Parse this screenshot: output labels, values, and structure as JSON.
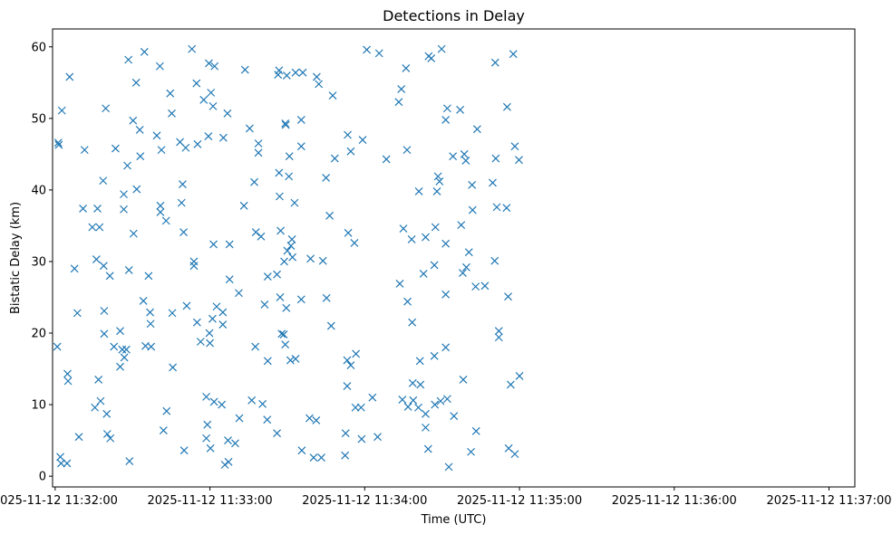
{
  "chart_data": {
    "type": "scatter",
    "title": "Detections in Delay",
    "xlabel": "Time (UTC)",
    "ylabel": "Bistatic Delay (km)",
    "x_is_time": true,
    "xlim": [
      "2025-11-12 11:31:59",
      "2025-11-12 11:37:10"
    ],
    "ylim": [
      -1.5,
      62.5
    ],
    "x_ticks": [
      {
        "label": "2025-11-12 11:32:00",
        "value": "2025-11-12 11:32:00"
      },
      {
        "label": "2025-11-12 11:33:00",
        "value": "2025-11-12 11:33:00"
      },
      {
        "label": "2025-11-12 11:34:00",
        "value": "2025-11-12 11:34:00"
      },
      {
        "label": "2025-11-12 11:35:00",
        "value": "2025-11-12 11:35:00"
      },
      {
        "label": "2025-11-12 11:36:00",
        "value": "2025-11-12 11:36:00"
      },
      {
        "label": "2025-11-12 11:37:00",
        "value": "2025-11-12 11:37:00"
      }
    ],
    "y_ticks": [
      {
        "label": "0",
        "value": 0
      },
      {
        "label": "10",
        "value": 10
      },
      {
        "label": "20",
        "value": 20
      },
      {
        "label": "30",
        "value": 30
      },
      {
        "label": "40",
        "value": 40
      },
      {
        "label": "50",
        "value": 50
      },
      {
        "label": "60",
        "value": 60
      }
    ],
    "grid": false,
    "marker": "x",
    "color": "#1f77b4",
    "points": [
      [
        "2025-11-12 11:32:00.8",
        18.1
      ],
      [
        "2025-11-12 11:32:01.2",
        46.6
      ],
      [
        "2025-11-12 11:32:01.4",
        46.3
      ],
      [
        "2025-11-12 11:32:02.0",
        2.7
      ],
      [
        "2025-11-12 11:32:02.3",
        1.8
      ],
      [
        "2025-11-12 11:32:02.6",
        51.1
      ],
      [
        "2025-11-12 11:32:04.6",
        1.8
      ],
      [
        "2025-11-12 11:32:04.8",
        14.3
      ],
      [
        "2025-11-12 11:32:05.0",
        13.3
      ],
      [
        "2025-11-12 11:32:05.6",
        55.8
      ],
      [
        "2025-11-12 11:32:07.5",
        29.0
      ],
      [
        "2025-11-12 11:32:08.6",
        22.8
      ],
      [
        "2025-11-12 11:32:09.2",
        5.5
      ],
      [
        "2025-11-12 11:32:10.8",
        37.4
      ],
      [
        "2025-11-12 11:32:11.4",
        45.6
      ],
      [
        "2025-11-12 11:32:14.4",
        34.8
      ],
      [
        "2025-11-12 11:32:15.4",
        9.6
      ],
      [
        "2025-11-12 11:32:16.0",
        30.3
      ],
      [
        "2025-11-12 11:32:16.4",
        37.4
      ],
      [
        "2025-11-12 11:32:16.8",
        13.5
      ],
      [
        "2025-11-12 11:32:17.2",
        34.8
      ],
      [
        "2025-11-12 11:32:17.6",
        10.5
      ],
      [
        "2025-11-12 11:32:18.6",
        41.3
      ],
      [
        "2025-11-12 11:32:18.8",
        29.4
      ],
      [
        "2025-11-12 11:32:19.0",
        23.1
      ],
      [
        "2025-11-12 11:32:19.0",
        19.9
      ],
      [
        "2025-11-12 11:32:19.6",
        51.4
      ],
      [
        "2025-11-12 11:32:20.0",
        8.7
      ],
      [
        "2025-11-12 11:32:20.2",
        5.9
      ],
      [
        "2025-11-12 11:32:21.2",
        28.0
      ],
      [
        "2025-11-12 11:32:21.4",
        5.3
      ],
      [
        "2025-11-12 11:32:22.8",
        18.1
      ],
      [
        "2025-11-12 11:32:23.4",
        45.8
      ],
      [
        "2025-11-12 11:32:25.2",
        20.3
      ],
      [
        "2025-11-12 11:32:25.2",
        15.3
      ],
      [
        "2025-11-12 11:32:26.0",
        17.7
      ],
      [
        "2025-11-12 11:32:26.6",
        39.4
      ],
      [
        "2025-11-12 11:32:26.6",
        37.3
      ],
      [
        "2025-11-12 11:32:26.8",
        16.6
      ],
      [
        "2025-11-12 11:32:27.6",
        17.7
      ],
      [
        "2025-11-12 11:32:28.0",
        43.4
      ],
      [
        "2025-11-12 11:32:28.4",
        58.2
      ],
      [
        "2025-11-12 11:32:28.6",
        28.8
      ],
      [
        "2025-11-12 11:32:28.8",
        2.1
      ],
      [
        "2025-11-12 11:32:30.2",
        49.7
      ],
      [
        "2025-11-12 11:32:30.4",
        33.9
      ],
      [
        "2025-11-12 11:32:31.4",
        55.0
      ],
      [
        "2025-11-12 11:32:31.6",
        40.1
      ],
      [
        "2025-11-12 11:32:32.8",
        48.4
      ],
      [
        "2025-11-12 11:32:33.0",
        44.7
      ],
      [
        "2025-11-12 11:32:34.2",
        24.5
      ],
      [
        "2025-11-12 11:32:34.6",
        59.3
      ],
      [
        "2025-11-12 11:32:35.0",
        18.2
      ],
      [
        "2025-11-12 11:32:36.2",
        28.0
      ],
      [
        "2025-11-12 11:32:36.8",
        22.9
      ],
      [
        "2025-11-12 11:32:37.0",
        21.3
      ],
      [
        "2025-11-12 11:32:37.2",
        18.1
      ],
      [
        "2025-11-12 11:32:39.4",
        47.6
      ],
      [
        "2025-11-12 11:32:40.6",
        57.3
      ],
      [
        "2025-11-12 11:32:40.8",
        37.8
      ],
      [
        "2025-11-12 11:32:40.8",
        36.9
      ],
      [
        "2025-11-12 11:32:41.2",
        45.6
      ],
      [
        "2025-11-12 11:32:42.0",
        6.4
      ],
      [
        "2025-11-12 11:32:43.0",
        35.7
      ],
      [
        "2025-11-12 11:32:43.2",
        9.1
      ],
      [
        "2025-11-12 11:32:44.6",
        53.5
      ],
      [
        "2025-11-12 11:32:45.2",
        50.7
      ],
      [
        "2025-11-12 11:32:45.4",
        22.8
      ],
      [
        "2025-11-12 11:32:45.6",
        15.2
      ],
      [
        "2025-11-12 11:32:48.4",
        46.7
      ],
      [
        "2025-11-12 11:32:49.0",
        38.2
      ],
      [
        "2025-11-12 11:32:49.4",
        40.8
      ],
      [
        "2025-11-12 11:32:49.8",
        34.1
      ],
      [
        "2025-11-12 11:32:50.0",
        3.6
      ],
      [
        "2025-11-12 11:32:50.6",
        45.9
      ],
      [
        "2025-11-12 11:32:51.0",
        23.8
      ],
      [
        "2025-11-12 11:32:53.0",
        59.7
      ],
      [
        "2025-11-12 11:32:53.8",
        30.0
      ],
      [
        "2025-11-12 11:32:53.8",
        29.4
      ],
      [
        "2025-11-12 11:32:54.8",
        54.9
      ],
      [
        "2025-11-12 11:32:55.0",
        21.5
      ],
      [
        "2025-11-12 11:32:55.2",
        46.4
      ],
      [
        "2025-11-12 11:32:56.4",
        18.8
      ],
      [
        "2025-11-12 11:32:57.6",
        52.6
      ],
      [
        "2025-11-12 11:32:58.6",
        11.1
      ],
      [
        "2025-11-12 11:32:58.6",
        5.3
      ],
      [
        "2025-11-12 11:32:59.0",
        7.2
      ],
      [
        "2025-11-12 11:32:59.4",
        47.5
      ],
      [
        "2025-11-12 11:32:59.6",
        57.7
      ],
      [
        "2025-11-12 11:32:59.8",
        20.0
      ],
      [
        "2025-11-12 11:33:00.0",
        18.6
      ],
      [
        "2025-11-12 11:33:00.2",
        3.9
      ],
      [
        "2025-11-12 11:33:00.4",
        53.6
      ],
      [
        "2025-11-12 11:33:01.0",
        22.0
      ],
      [
        "2025-11-12 11:33:01.2",
        51.7
      ],
      [
        "2025-11-12 11:33:01.4",
        32.4
      ],
      [
        "2025-11-12 11:33:01.6",
        10.4
      ],
      [
        "2025-11-12 11:33:01.8",
        57.3
      ],
      [
        "2025-11-12 11:33:02.6",
        23.7
      ],
      [
        "2025-11-12 11:33:04.6",
        10.0
      ],
      [
        "2025-11-12 11:33:05.0",
        22.9
      ],
      [
        "2025-11-12 11:33:05.0",
        21.2
      ],
      [
        "2025-11-12 11:33:05.2",
        47.3
      ],
      [
        "2025-11-12 11:33:05.8",
        1.6
      ],
      [
        "2025-11-12 11:33:06.8",
        50.7
      ],
      [
        "2025-11-12 11:33:07.0",
        5.0
      ],
      [
        "2025-11-12 11:33:07.2",
        2.0
      ],
      [
        "2025-11-12 11:33:07.6",
        27.5
      ],
      [
        "2025-11-12 11:33:07.6",
        32.4
      ],
      [
        "2025-11-12 11:33:09.8",
        4.6
      ],
      [
        "2025-11-12 11:33:11.2",
        25.6
      ],
      [
        "2025-11-12 11:33:11.4",
        8.1
      ],
      [
        "2025-11-12 11:33:13.2",
        37.8
      ],
      [
        "2025-11-12 11:33:13.6",
        56.8
      ],
      [
        "2025-11-12 11:33:15.4",
        48.6
      ],
      [
        "2025-11-12 11:33:16.2",
        10.6
      ],
      [
        "2025-11-12 11:33:17.2",
        41.1
      ],
      [
        "2025-11-12 11:33:17.6",
        18.1
      ],
      [
        "2025-11-12 11:33:17.8",
        34.1
      ],
      [
        "2025-11-12 11:33:18.8",
        46.5
      ],
      [
        "2025-11-12 11:33:18.8",
        45.2
      ],
      [
        "2025-11-12 11:33:19.8",
        33.5
      ],
      [
        "2025-11-12 11:33:20.4",
        10.1
      ],
      [
        "2025-11-12 11:33:21.2",
        24.0
      ],
      [
        "2025-11-12 11:33:22.2",
        7.9
      ],
      [
        "2025-11-12 11:33:22.4",
        27.9
      ],
      [
        "2025-11-12 11:33:22.4",
        16.1
      ],
      [
        "2025-11-12 11:33:26.0",
        28.2
      ],
      [
        "2025-11-12 11:33:26.0",
        6.0
      ],
      [
        "2025-11-12 11:33:26.4",
        56.1
      ],
      [
        "2025-11-12 11:33:26.8",
        56.7
      ],
      [
        "2025-11-12 11:33:26.8",
        42.4
      ],
      [
        "2025-11-12 11:33:27.0",
        39.1
      ],
      [
        "2025-11-12 11:33:27.2",
        25.0
      ],
      [
        "2025-11-12 11:33:27.4",
        34.3
      ],
      [
        "2025-11-12 11:33:27.8",
        19.9
      ],
      [
        "2025-11-12 11:33:28.6",
        19.8
      ],
      [
        "2025-11-12 11:33:28.8",
        30.0
      ],
      [
        "2025-11-12 11:33:29.2",
        18.4
      ],
      [
        "2025-11-12 11:33:29.2",
        49.3
      ],
      [
        "2025-11-12 11:33:29.4",
        49.1
      ],
      [
        "2025-11-12 11:33:29.6",
        23.5
      ],
      [
        "2025-11-12 11:33:29.8",
        56.0
      ],
      [
        "2025-11-12 11:33:30.0",
        31.5
      ],
      [
        "2025-11-12 11:33:30.6",
        41.9
      ],
      [
        "2025-11-12 11:33:30.8",
        44.7
      ],
      [
        "2025-11-12 11:33:31.2",
        16.2
      ],
      [
        "2025-11-12 11:33:31.4",
        32.2
      ],
      [
        "2025-11-12 11:33:31.8",
        33.1
      ],
      [
        "2025-11-12 11:33:32.0",
        30.6
      ],
      [
        "2025-11-12 11:33:32.8",
        38.2
      ],
      [
        "2025-11-12 11:33:33.2",
        16.4
      ],
      [
        "2025-11-12 11:33:33.2",
        56.4
      ],
      [
        "2025-11-12 11:33:35.4",
        49.8
      ],
      [
        "2025-11-12 11:33:35.4",
        46.1
      ],
      [
        "2025-11-12 11:33:35.4",
        24.7
      ],
      [
        "2025-11-12 11:33:35.6",
        3.6
      ],
      [
        "2025-11-12 11:33:36.0",
        56.4
      ],
      [
        "2025-11-12 11:33:38.6",
        8.1
      ],
      [
        "2025-11-12 11:33:39.0",
        30.4
      ],
      [
        "2025-11-12 11:33:40.2",
        2.6
      ],
      [
        "2025-11-12 11:33:41.2",
        7.8
      ],
      [
        "2025-11-12 11:33:41.4",
        55.8
      ],
      [
        "2025-11-12 11:33:42.2",
        54.8
      ],
      [
        "2025-11-12 11:33:43.2",
        2.6
      ],
      [
        "2025-11-12 11:33:43.8",
        30.1
      ],
      [
        "2025-11-12 11:33:45.0",
        41.7
      ],
      [
        "2025-11-12 11:33:45.2",
        24.9
      ],
      [
        "2025-11-12 11:33:46.4",
        36.4
      ],
      [
        "2025-11-12 11:33:47.0",
        21.0
      ],
      [
        "2025-11-12 11:33:47.6",
        53.2
      ],
      [
        "2025-11-12 11:33:48.4",
        44.4
      ],
      [
        "2025-11-12 11:33:52.4",
        2.9
      ],
      [
        "2025-11-12 11:33:52.6",
        6.0
      ],
      [
        "2025-11-12 11:33:53.2",
        12.6
      ],
      [
        "2025-11-12 11:33:53.2",
        16.2
      ],
      [
        "2025-11-12 11:33:53.4",
        47.7
      ],
      [
        "2025-11-12 11:33:53.6",
        34.0
      ],
      [
        "2025-11-12 11:33:54.6",
        15.5
      ],
      [
        "2025-11-12 11:33:54.6",
        45.4
      ],
      [
        "2025-11-12 11:33:56.0",
        32.6
      ],
      [
        "2025-11-12 11:33:56.4",
        9.6
      ],
      [
        "2025-11-12 11:33:56.6",
        17.1
      ],
      [
        "2025-11-12 11:33:58.6",
        9.6
      ],
      [
        "2025-11-12 11:33:58.8",
        5.2
      ],
      [
        "2025-11-12 11:33:59.2",
        47.0
      ],
      [
        "2025-11-12 11:34:00.8",
        59.6
      ],
      [
        "2025-11-12 11:34:03.0",
        11.0
      ],
      [
        "2025-11-12 11:34:05.0",
        5.5
      ],
      [
        "2025-11-12 11:34:05.6",
        59.1
      ],
      [
        "2025-11-12 11:34:08.4",
        44.3
      ],
      [
        "2025-11-12 11:34:13.2",
        52.3
      ],
      [
        "2025-11-12 11:34:13.6",
        26.9
      ],
      [
        "2025-11-12 11:34:14.2",
        54.1
      ],
      [
        "2025-11-12 11:34:14.6",
        10.7
      ],
      [
        "2025-11-12 11:34:15.0",
        34.6
      ],
      [
        "2025-11-12 11:34:16.0",
        57.0
      ],
      [
        "2025-11-12 11:34:16.4",
        45.6
      ],
      [
        "2025-11-12 11:34:16.6",
        24.4
      ],
      [
        "2025-11-12 11:34:16.8",
        9.7
      ],
      [
        "2025-11-12 11:34:18.2",
        33.1
      ],
      [
        "2025-11-12 11:34:18.4",
        21.5
      ],
      [
        "2025-11-12 11:34:18.6",
        13.0
      ],
      [
        "2025-11-12 11:34:18.8",
        10.6
      ],
      [
        "2025-11-12 11:34:20.8",
        9.6
      ],
      [
        "2025-11-12 11:34:21.0",
        39.8
      ],
      [
        "2025-11-12 11:34:21.4",
        16.1
      ],
      [
        "2025-11-12 11:34:21.6",
        12.8
      ],
      [
        "2025-11-12 11:34:22.8",
        28.3
      ],
      [
        "2025-11-12 11:34:23.6",
        8.7
      ],
      [
        "2025-11-12 11:34:23.6",
        33.4
      ],
      [
        "2025-11-12 11:34:23.6",
        6.8
      ],
      [
        "2025-11-12 11:34:24.6",
        3.8
      ],
      [
        "2025-11-12 11:34:24.8",
        58.7
      ],
      [
        "2025-11-12 11:34:25.8",
        58.4
      ],
      [
        "2025-11-12 11:34:27.0",
        29.5
      ],
      [
        "2025-11-12 11:34:27.0",
        16.8
      ],
      [
        "2025-11-12 11:34:27.2",
        10.0
      ],
      [
        "2025-11-12 11:34:27.4",
        34.8
      ],
      [
        "2025-11-12 11:34:28.0",
        39.8
      ],
      [
        "2025-11-12 11:34:28.4",
        41.9
      ],
      [
        "2025-11-12 11:34:29.0",
        41.2
      ],
      [
        "2025-11-12 11:34:29.4",
        10.5
      ],
      [
        "2025-11-12 11:34:29.8",
        59.7
      ],
      [
        "2025-11-12 11:34:31.4",
        32.5
      ],
      [
        "2025-11-12 11:34:31.4",
        25.4
      ],
      [
        "2025-11-12 11:34:31.4",
        18.0
      ],
      [
        "2025-11-12 11:34:31.4",
        49.8
      ],
      [
        "2025-11-12 11:34:32.0",
        51.4
      ],
      [
        "2025-11-12 11:34:32.0",
        10.8
      ],
      [
        "2025-11-12 11:34:32.6",
        1.3
      ],
      [
        "2025-11-12 11:34:34.2",
        44.7
      ],
      [
        "2025-11-12 11:34:34.6",
        8.4
      ],
      [
        "2025-11-12 11:34:37.0",
        51.2
      ],
      [
        "2025-11-12 11:34:37.4",
        35.1
      ],
      [
        "2025-11-12 11:34:38.0",
        28.4
      ],
      [
        "2025-11-12 11:34:38.2",
        13.5
      ],
      [
        "2025-11-12 11:34:38.6",
        45.0
      ],
      [
        "2025-11-12 11:34:39.2",
        44.1
      ],
      [
        "2025-11-12 11:34:39.4",
        29.2
      ],
      [
        "2025-11-12 11:34:40.4",
        31.3
      ],
      [
        "2025-11-12 11:34:41.2",
        3.4
      ],
      [
        "2025-11-12 11:34:41.6",
        40.7
      ],
      [
        "2025-11-12 11:34:41.8",
        37.2
      ],
      [
        "2025-11-12 11:34:43.0",
        26.5
      ],
      [
        "2025-11-12 11:34:43.2",
        6.3
      ],
      [
        "2025-11-12 11:34:43.6",
        48.5
      ],
      [
        "2025-11-12 11:34:46.6",
        26.6
      ],
      [
        "2025-11-12 11:34:49.6",
        41.0
      ],
      [
        "2025-11-12 11:34:50.4",
        30.1
      ],
      [
        "2025-11-12 11:34:50.6",
        57.8
      ],
      [
        "2025-11-12 11:34:50.8",
        44.4
      ],
      [
        "2025-11-12 11:34:51.2",
        37.6
      ],
      [
        "2025-11-12 11:34:52.0",
        20.3
      ],
      [
        "2025-11-12 11:34:52.0",
        19.4
      ],
      [
        "2025-11-12 11:34:55.0",
        37.5
      ],
      [
        "2025-11-12 11:34:55.2",
        51.6
      ],
      [
        "2025-11-12 11:34:55.6",
        25.1
      ],
      [
        "2025-11-12 11:34:55.8",
        3.9
      ],
      [
        "2025-11-12 11:34:56.6",
        12.8
      ],
      [
        "2025-11-12 11:34:57.6",
        59.0
      ],
      [
        "2025-11-12 11:34:58.2",
        46.1
      ],
      [
        "2025-11-12 11:34:58.2",
        3.1
      ],
      [
        "2025-11-12 11:34:59.8",
        44.2
      ],
      [
        "2025-11-12 11:35:00.0",
        14.0
      ]
    ]
  }
}
